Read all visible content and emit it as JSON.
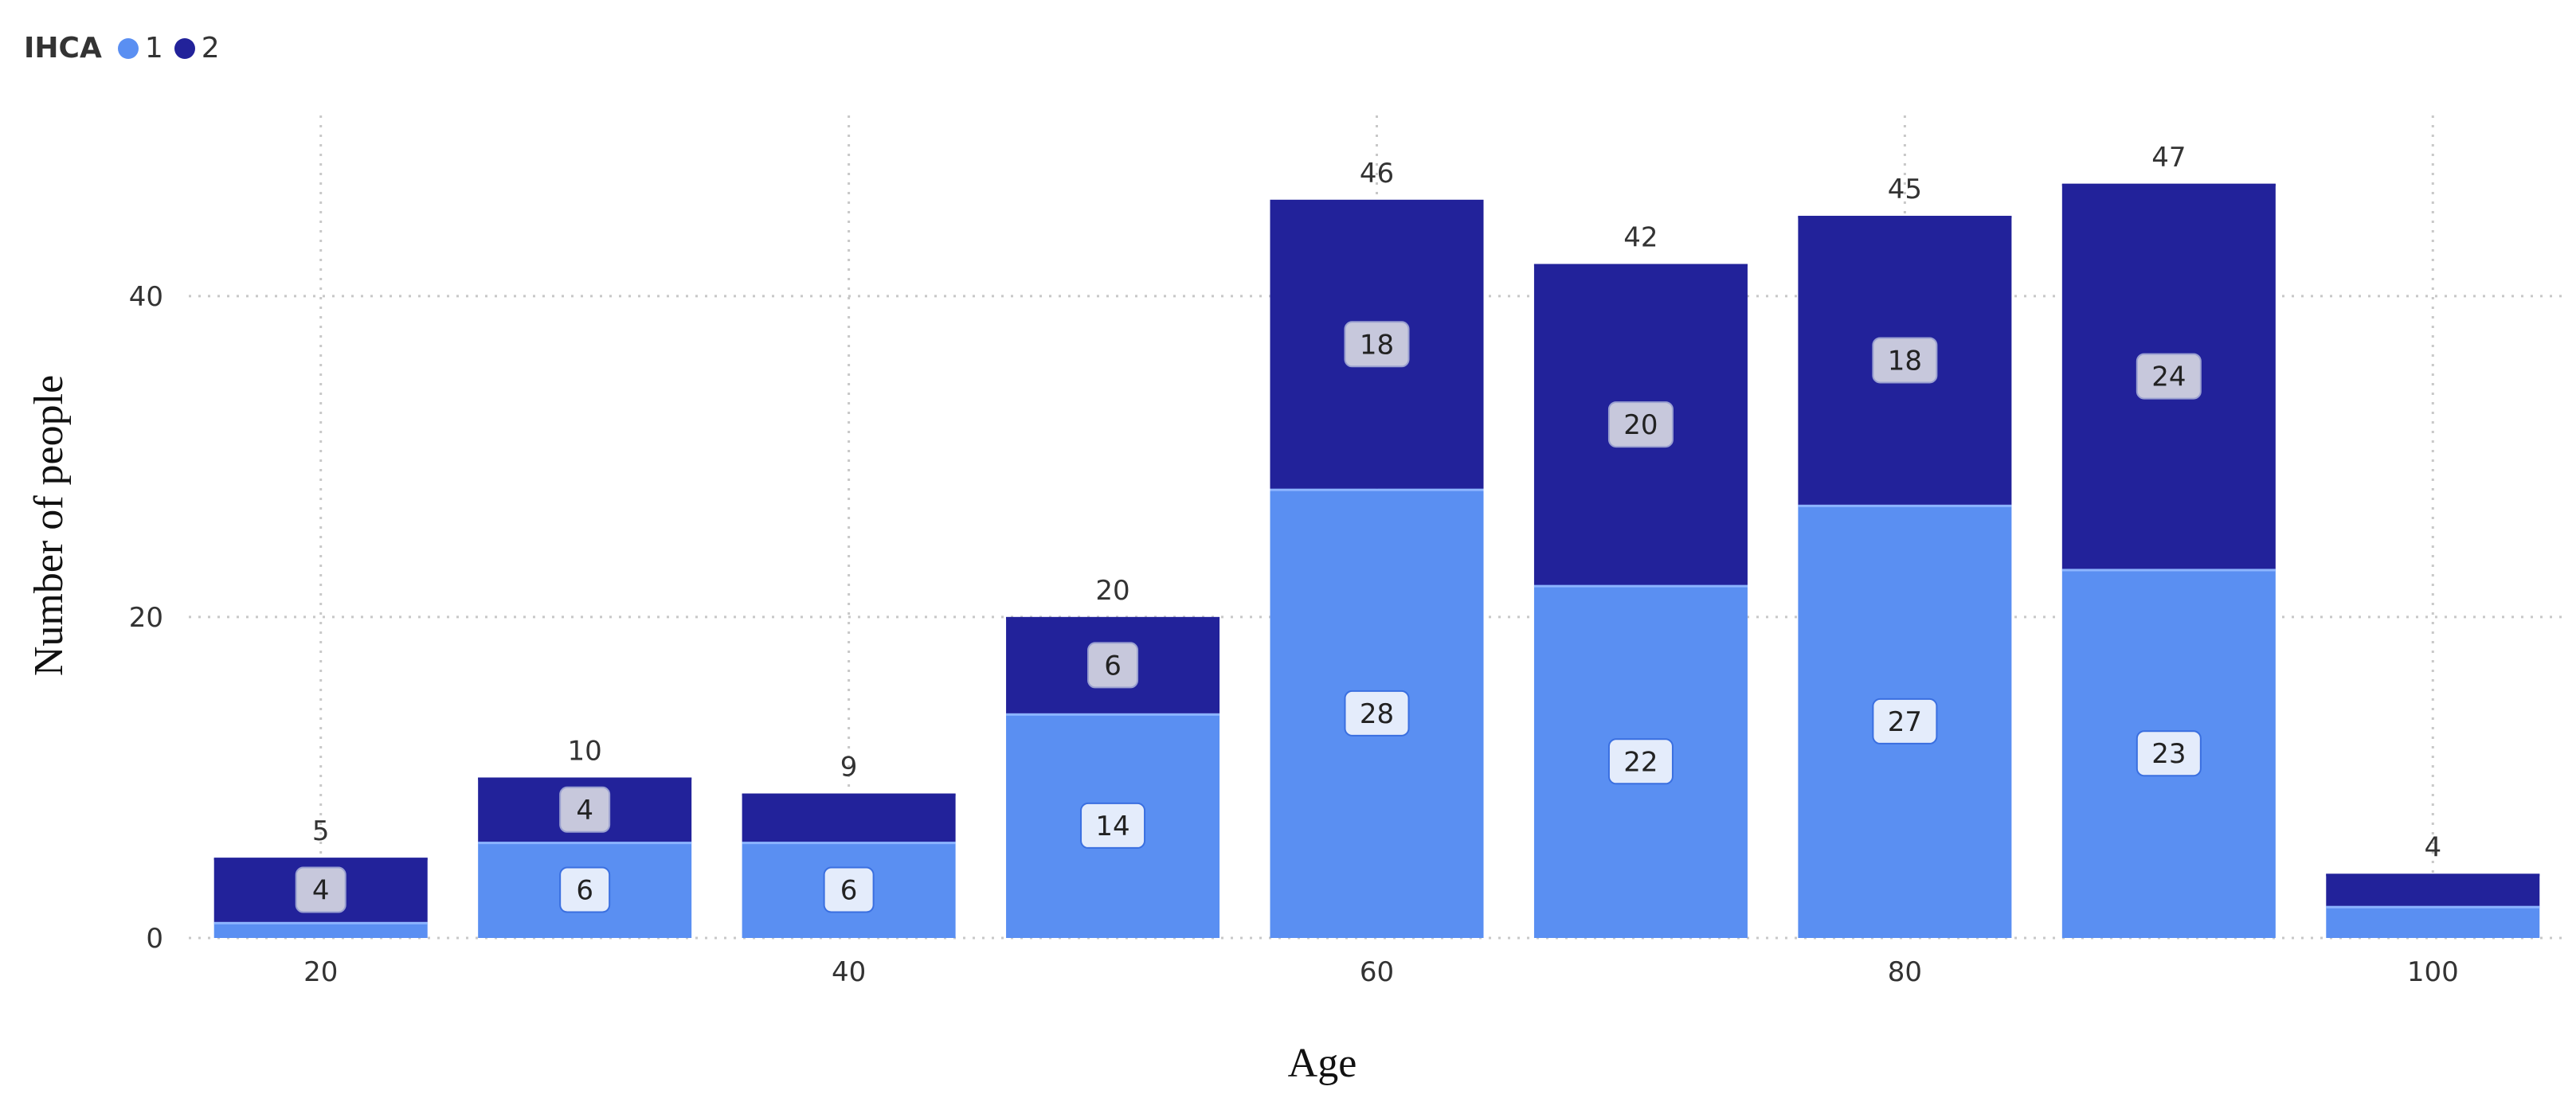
{
  "chart_data": {
    "type": "bar",
    "stacked": true,
    "title": "",
    "xlabel": "Age",
    "ylabel": "Number of people",
    "xlim": [
      15,
      105
    ],
    "ylim": [
      0,
      52
    ],
    "x_ticks": [
      20,
      40,
      60,
      80,
      100
    ],
    "y_ticks": [
      0,
      20,
      40
    ],
    "grid": true,
    "legend": {
      "title": "IHCA",
      "position": "top-left"
    },
    "x": [
      20,
      30,
      40,
      50,
      60,
      70,
      80,
      90,
      100
    ],
    "series": [
      {
        "name": "1",
        "color": "#5a8ff2",
        "values": [
          1,
          6,
          6,
          14,
          28,
          22,
          27,
          23,
          2
        ],
        "labels": [
          "",
          "6",
          "6",
          "14",
          "28",
          "22",
          "27",
          "23",
          ""
        ]
      },
      {
        "name": "2",
        "color": "#22229a",
        "values": [
          4,
          4,
          3,
          6,
          18,
          20,
          18,
          24,
          2
        ],
        "labels": [
          "4",
          "4",
          "",
          "6",
          "18",
          "20",
          "18",
          "24",
          ""
        ]
      }
    ],
    "totals": [
      5,
      10,
      9,
      20,
      46,
      42,
      45,
      47,
      4
    ]
  }
}
